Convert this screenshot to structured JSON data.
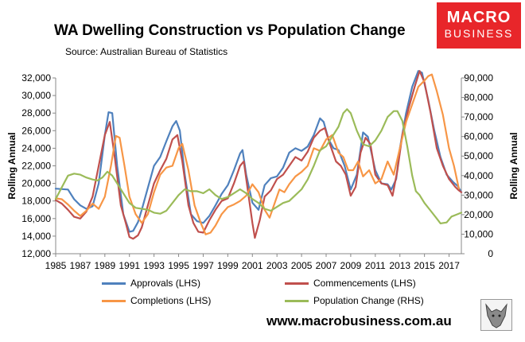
{
  "chart_data": {
    "type": "line",
    "title": "WA Dwelling Construction vs Population Change",
    "subtitle": "Source: Australian Bureau of Statistics",
    "ylabel_left": "Rolling Annual",
    "ylabel_right": "Rolling Annual",
    "xlim": [
      1985,
      2018
    ],
    "ylim_left": [
      12000,
      32000
    ],
    "ylim_right": [
      0,
      90000
    ],
    "x_ticks": [
      "1985",
      "1987",
      "1989",
      "1991",
      "1993",
      "1995",
      "1997",
      "1999",
      "2001",
      "2003",
      "2005",
      "2007",
      "2009",
      "2011",
      "2013",
      "2015",
      "2017"
    ],
    "y_ticks_left": [
      "12,000",
      "14,000",
      "16,000",
      "18,000",
      "20,000",
      "22,000",
      "24,000",
      "26,000",
      "28,000",
      "30,000",
      "32,000"
    ],
    "y_ticks_right": [
      "0",
      "10,000",
      "20,000",
      "30,000",
      "40,000",
      "50,000",
      "60,000",
      "70,000",
      "80,000",
      "90,000"
    ],
    "series": [
      {
        "name": "Approvals (LHS)",
        "axis": "left",
        "color": "#4f81bd",
        "points": [
          [
            1985,
            19400
          ],
          [
            1986,
            19300
          ],
          [
            1986.5,
            18200
          ],
          [
            1987,
            17500
          ],
          [
            1987.5,
            17100
          ],
          [
            1988,
            17400
          ],
          [
            1988.5,
            20000
          ],
          [
            1989,
            25500
          ],
          [
            1989.3,
            28100
          ],
          [
            1989.6,
            28000
          ],
          [
            1990,
            22000
          ],
          [
            1990.5,
            16500
          ],
          [
            1991,
            14500
          ],
          [
            1991.3,
            14600
          ],
          [
            1991.7,
            15600
          ],
          [
            1992,
            17000
          ],
          [
            1992.5,
            19500
          ],
          [
            1993,
            22000
          ],
          [
            1993.5,
            23000
          ],
          [
            1994,
            24800
          ],
          [
            1994.5,
            26500
          ],
          [
            1994.8,
            27100
          ],
          [
            1995.1,
            26000
          ],
          [
            1995.5,
            21000
          ],
          [
            1996,
            16500
          ],
          [
            1996.5,
            15700
          ],
          [
            1997,
            15500
          ],
          [
            1997.5,
            16300
          ],
          [
            1998,
            17500
          ],
          [
            1998.5,
            18800
          ],
          [
            1999,
            19800
          ],
          [
            1999.5,
            21500
          ],
          [
            2000,
            23400
          ],
          [
            2000.2,
            23800
          ],
          [
            2000.5,
            21000
          ],
          [
            2001,
            17800
          ],
          [
            2001.5,
            17000
          ],
          [
            2002,
            19800
          ],
          [
            2002.5,
            20600
          ],
          [
            2003,
            20800
          ],
          [
            2003.5,
            21800
          ],
          [
            2004,
            23500
          ],
          [
            2004.5,
            24000
          ],
          [
            2005,
            23700
          ],
          [
            2005.5,
            24200
          ],
          [
            2006,
            25500
          ],
          [
            2006.5,
            27400
          ],
          [
            2006.8,
            27000
          ],
          [
            2007.2,
            25000
          ],
          [
            2007.6,
            24000
          ],
          [
            2008,
            23800
          ],
          [
            2008.5,
            22000
          ],
          [
            2009,
            19300
          ],
          [
            2009.5,
            21000
          ],
          [
            2010,
            25800
          ],
          [
            2010.4,
            25300
          ],
          [
            2011,
            21500
          ],
          [
            2011.5,
            20000
          ],
          [
            2012,
            19900
          ],
          [
            2012.3,
            19300
          ],
          [
            2012.7,
            20500
          ],
          [
            2013,
            24000
          ],
          [
            2013.5,
            28000
          ],
          [
            2014,
            31000
          ],
          [
            2014.5,
            32800
          ],
          [
            2014.8,
            32600
          ],
          [
            2015.3,
            29500
          ],
          [
            2015.8,
            26000
          ],
          [
            2016.3,
            23000
          ],
          [
            2016.8,
            21000
          ],
          [
            2017.3,
            20200
          ],
          [
            2017.7,
            19700
          ],
          [
            2018,
            19000
          ]
        ]
      },
      {
        "name": "Commencements (LHS)",
        "axis": "left",
        "color": "#c0504d",
        "points": [
          [
            1985,
            18100
          ],
          [
            1985.5,
            17700
          ],
          [
            1986,
            17000
          ],
          [
            1986.5,
            16200
          ],
          [
            1987,
            16000
          ],
          [
            1987.5,
            16800
          ],
          [
            1988,
            18500
          ],
          [
            1988.5,
            22000
          ],
          [
            1989,
            25500
          ],
          [
            1989.4,
            27000
          ],
          [
            1989.8,
            23000
          ],
          [
            1990.3,
            17500
          ],
          [
            1990.7,
            15500
          ],
          [
            1991,
            13900
          ],
          [
            1991.3,
            13700
          ],
          [
            1991.7,
            14100
          ],
          [
            1992,
            15000
          ],
          [
            1992.5,
            17500
          ],
          [
            1993,
            20000
          ],
          [
            1993.5,
            21500
          ],
          [
            1994,
            22800
          ],
          [
            1994.5,
            25000
          ],
          [
            1994.9,
            25500
          ],
          [
            1995.3,
            22500
          ],
          [
            1995.8,
            17500
          ],
          [
            1996.2,
            15500
          ],
          [
            1996.6,
            14500
          ],
          [
            1997,
            14400
          ],
          [
            1997.5,
            15800
          ],
          [
            1998,
            17000
          ],
          [
            1998.5,
            18000
          ],
          [
            1999,
            18300
          ],
          [
            1999.5,
            20000
          ],
          [
            2000,
            22000
          ],
          [
            2000.3,
            22500
          ],
          [
            2000.6,
            19500
          ],
          [
            2001,
            15500
          ],
          [
            2001.2,
            13800
          ],
          [
            2001.6,
            15800
          ],
          [
            2002,
            18500
          ],
          [
            2002.5,
            19200
          ],
          [
            2003,
            20500
          ],
          [
            2003.5,
            21000
          ],
          [
            2004,
            22000
          ],
          [
            2004.5,
            23000
          ],
          [
            2005,
            22600
          ],
          [
            2005.5,
            23600
          ],
          [
            2006,
            25200
          ],
          [
            2006.5,
            26000
          ],
          [
            2006.9,
            26300
          ],
          [
            2007.3,
            24500
          ],
          [
            2007.8,
            22500
          ],
          [
            2008.2,
            22000
          ],
          [
            2008.6,
            21000
          ],
          [
            2009,
            18600
          ],
          [
            2009.4,
            19600
          ],
          [
            2009.8,
            23500
          ],
          [
            2010.2,
            25200
          ],
          [
            2010.6,
            24500
          ],
          [
            2011,
            21000
          ],
          [
            2011.5,
            20000
          ],
          [
            2012,
            19800
          ],
          [
            2012.4,
            18600
          ],
          [
            2012.8,
            21500
          ],
          [
            2013.2,
            25500
          ],
          [
            2013.7,
            28500
          ],
          [
            2014.2,
            31000
          ],
          [
            2014.6,
            32800
          ],
          [
            2015,
            31500
          ],
          [
            2015.5,
            28000
          ],
          [
            2016,
            24000
          ],
          [
            2016.5,
            22000
          ],
          [
            2017,
            20500
          ],
          [
            2017.5,
            19600
          ],
          [
            2017.8,
            19200
          ],
          [
            2018,
            19000
          ]
        ]
      },
      {
        "name": "Completions (LHS)",
        "axis": "left",
        "color": "#f79646",
        "points": [
          [
            1985,
            18300
          ],
          [
            1985.5,
            18200
          ],
          [
            1986,
            17600
          ],
          [
            1986.5,
            16900
          ],
          [
            1987,
            16300
          ],
          [
            1987.5,
            16900
          ],
          [
            1988,
            17700
          ],
          [
            1988.5,
            17100
          ],
          [
            1989,
            18500
          ],
          [
            1989.5,
            22000
          ],
          [
            1989.9,
            25400
          ],
          [
            1990.2,
            25200
          ],
          [
            1990.6,
            22000
          ],
          [
            1991,
            18500
          ],
          [
            1991.5,
            16500
          ],
          [
            1992,
            15500
          ],
          [
            1992.5,
            16500
          ],
          [
            1993,
            19000
          ],
          [
            1993.5,
            21000
          ],
          [
            1994,
            21800
          ],
          [
            1994.5,
            22000
          ],
          [
            1995,
            24000
          ],
          [
            1995.3,
            24500
          ],
          [
            1995.8,
            21500
          ],
          [
            1996.3,
            17500
          ],
          [
            1996.8,
            15500
          ],
          [
            1997.2,
            14200
          ],
          [
            1997.6,
            14400
          ],
          [
            1998,
            15200
          ],
          [
            1998.5,
            16500
          ],
          [
            1999,
            17300
          ],
          [
            1999.5,
            17600
          ],
          [
            2000,
            18000
          ],
          [
            2000.5,
            18600
          ],
          [
            2001,
            19900
          ],
          [
            2001.5,
            19000
          ],
          [
            2002,
            17000
          ],
          [
            2002.4,
            16100
          ],
          [
            2002.8,
            17700
          ],
          [
            2003.2,
            19300
          ],
          [
            2003.6,
            19000
          ],
          [
            2004,
            19900
          ],
          [
            2004.5,
            20800
          ],
          [
            2005,
            21300
          ],
          [
            2005.5,
            22000
          ],
          [
            2006,
            24000
          ],
          [
            2006.5,
            23700
          ],
          [
            2007,
            25000
          ],
          [
            2007.5,
            25500
          ],
          [
            2008,
            23500
          ],
          [
            2008.4,
            23000
          ],
          [
            2008.8,
            21500
          ],
          [
            2009.2,
            21500
          ],
          [
            2009.6,
            22500
          ],
          [
            2010,
            20800
          ],
          [
            2010.5,
            21500
          ],
          [
            2011,
            20000
          ],
          [
            2011.5,
            20500
          ],
          [
            2012,
            22500
          ],
          [
            2012.5,
            21000
          ],
          [
            2013,
            24000
          ],
          [
            2013.5,
            27000
          ],
          [
            2014,
            29000
          ],
          [
            2014.5,
            31000
          ],
          [
            2015,
            31700
          ],
          [
            2015.3,
            32200
          ],
          [
            2015.6,
            32400
          ],
          [
            2016,
            30500
          ],
          [
            2016.5,
            27800
          ],
          [
            2017,
            24000
          ],
          [
            2017.4,
            22000
          ],
          [
            2017.8,
            19400
          ]
        ]
      },
      {
        "name": "Population Change (RHS)",
        "axis": "right",
        "color": "#9bbb59",
        "points": [
          [
            1985,
            28000
          ],
          [
            1985.5,
            34000
          ],
          [
            1986,
            40000
          ],
          [
            1986.5,
            41000
          ],
          [
            1987,
            40500
          ],
          [
            1987.5,
            39000
          ],
          [
            1988,
            38000
          ],
          [
            1988.4,
            37500
          ],
          [
            1988.8,
            39000
          ],
          [
            1989.2,
            42000
          ],
          [
            1989.6,
            40000
          ],
          [
            1990,
            36000
          ],
          [
            1990.5,
            31000
          ],
          [
            1991,
            26000
          ],
          [
            1991.5,
            23500
          ],
          [
            1992,
            23000
          ],
          [
            1992.5,
            22500
          ],
          [
            1993,
            21000
          ],
          [
            1993.5,
            20500
          ],
          [
            1994,
            22000
          ],
          [
            1994.5,
            26000
          ],
          [
            1995,
            30000
          ],
          [
            1995.5,
            33000
          ],
          [
            1996,
            32000
          ],
          [
            1996.5,
            32000
          ],
          [
            1997,
            31000
          ],
          [
            1997.5,
            33000
          ],
          [
            1998,
            30000
          ],
          [
            1998.5,
            28000
          ],
          [
            1999,
            29000
          ],
          [
            1999.5,
            31000
          ],
          [
            2000,
            33000
          ],
          [
            2000.5,
            31000
          ],
          [
            2001,
            28000
          ],
          [
            2001.5,
            26000
          ],
          [
            2002,
            23000
          ],
          [
            2002.5,
            22000
          ],
          [
            2003,
            24000
          ],
          [
            2003.5,
            26000
          ],
          [
            2004,
            27000
          ],
          [
            2004.5,
            30000
          ],
          [
            2005,
            33000
          ],
          [
            2005.5,
            38000
          ],
          [
            2006,
            45000
          ],
          [
            2006.5,
            53000
          ],
          [
            2007,
            55000
          ],
          [
            2007.5,
            60000
          ],
          [
            2008,
            65000
          ],
          [
            2008.4,
            72000
          ],
          [
            2008.7,
            74000
          ],
          [
            2009,
            72000
          ],
          [
            2009.5,
            63000
          ],
          [
            2010,
            56000
          ],
          [
            2010.5,
            55000
          ],
          [
            2011,
            58000
          ],
          [
            2011.5,
            63000
          ],
          [
            2012,
            70000
          ],
          [
            2012.5,
            73000
          ],
          [
            2012.8,
            73000
          ],
          [
            2013.2,
            68000
          ],
          [
            2013.6,
            55000
          ],
          [
            2014,
            40000
          ],
          [
            2014.3,
            32000
          ],
          [
            2014.6,
            30000
          ],
          [
            2015,
            26000
          ],
          [
            2015.5,
            22000
          ],
          [
            2016,
            18000
          ],
          [
            2016.3,
            15500
          ],
          [
            2016.8,
            16000
          ],
          [
            2017.2,
            19000
          ],
          [
            2017.6,
            20000
          ],
          [
            2018,
            21000
          ]
        ]
      }
    ]
  },
  "branding": {
    "logo_top": "MACRO",
    "logo_bottom": "BUSINESS",
    "website": "www.macrobusiness.com.au",
    "logo_color": "#e8262a"
  }
}
